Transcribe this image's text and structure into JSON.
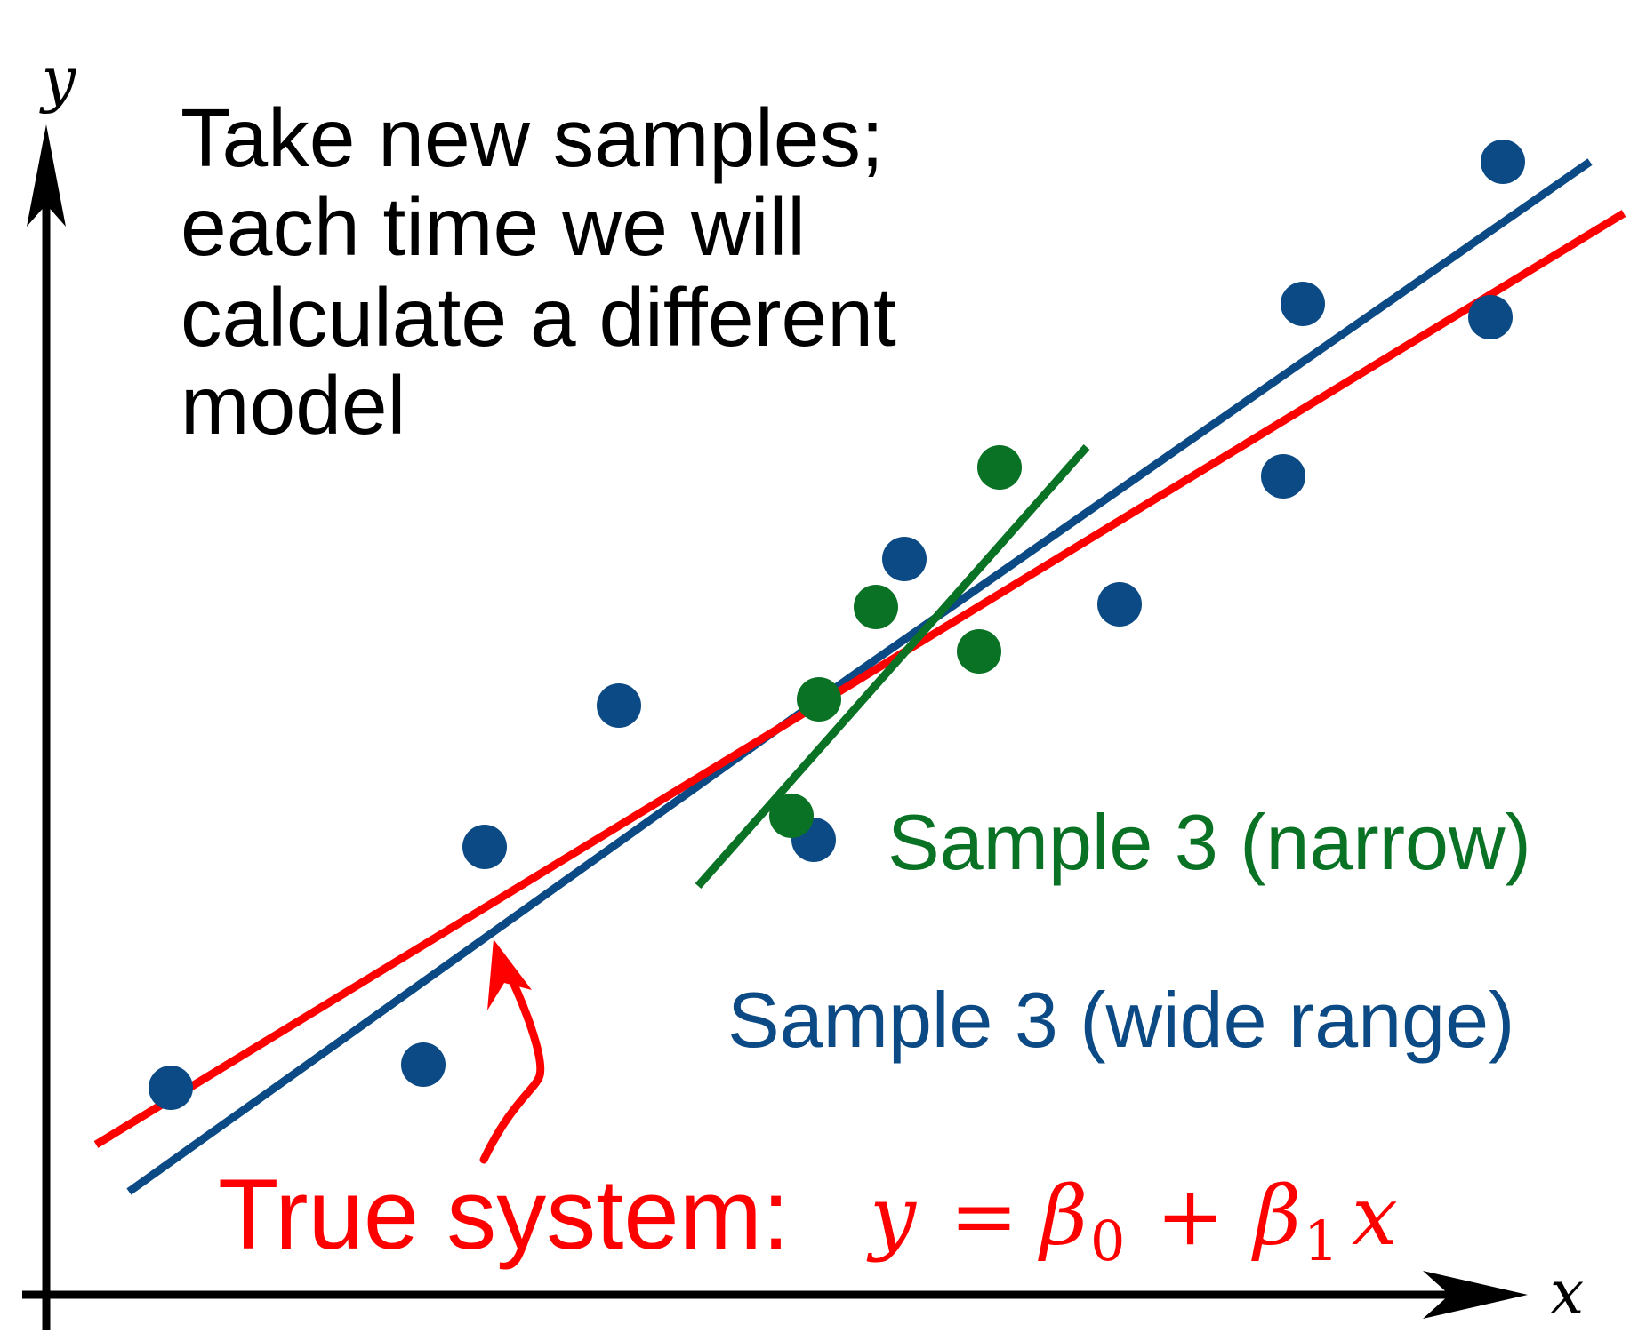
{
  "axes": {
    "x_label": "x",
    "y_label": "y"
  },
  "annotation": {
    "lines": [
      "Take new samples;",
      "each time we will",
      "calculate a different",
      "model"
    ]
  },
  "labels": {
    "narrow": "Sample 3 (narrow)",
    "wide": "Sample 3 (wide range)",
    "true_system_prefix": "True system:",
    "equation": {
      "y": "y",
      "eq": "=",
      "beta0": "β",
      "sub0": "0",
      "plus": "+",
      "beta1": "β",
      "sub1": "1",
      "x": "x"
    }
  },
  "colors": {
    "axis": "#000000",
    "true_system": "#ff0000",
    "wide_sample": "#0b4a84",
    "narrow_sample": "#0a7224",
    "annotation_text": "#000000"
  }
}
